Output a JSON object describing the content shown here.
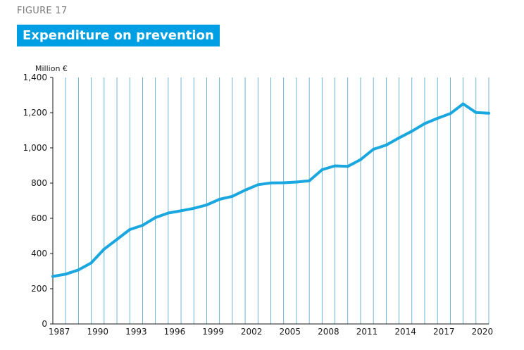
{
  "figure_label": "FIGURE 17",
  "chart_data": {
    "type": "line",
    "title": "Expenditure on prevention",
    "ylabel": "Million €",
    "xlabel": "",
    "ylim": [
      0,
      1400
    ],
    "yticks": [
      0,
      200,
      400,
      600,
      800,
      1000,
      1200,
      1400
    ],
    "ytick_labels": [
      "0",
      "200",
      "400",
      "600",
      "800",
      "1,000",
      "1,200",
      "1,400"
    ],
    "xlim": [
      1986,
      2020
    ],
    "xtick_labels": [
      "1987",
      "1990",
      "1993",
      "1996",
      "1999",
      "2002",
      "2005",
      "2008",
      "2011",
      "2014",
      "2017",
      "2020"
    ],
    "grid": "vertical",
    "line_color": "#1aa7e0",
    "grid_color": "#4aa3c9",
    "series": [
      {
        "x": [
          1986,
          1987,
          1988,
          1989,
          1990,
          1991,
          1992,
          1993,
          1994,
          1995,
          1996,
          1997,
          1998,
          1999,
          2000,
          2001,
          2002,
          2003,
          2004,
          2005,
          2006,
          2007,
          2008,
          2009,
          2010,
          2011,
          2012,
          2013,
          2014,
          2015,
          2016,
          2017,
          2018,
          2019,
          2020
        ],
        "values": [
          270,
          283,
          307,
          347,
          425,
          480,
          536,
          560,
          604,
          630,
          643,
          657,
          676,
          708,
          725,
          760,
          791,
          801,
          802,
          806,
          813,
          876,
          898,
          895,
          933,
          992,
          1016,
          1057,
          1095,
          1138,
          1168,
          1195,
          1250,
          1201,
          1197
        ]
      }
    ]
  }
}
